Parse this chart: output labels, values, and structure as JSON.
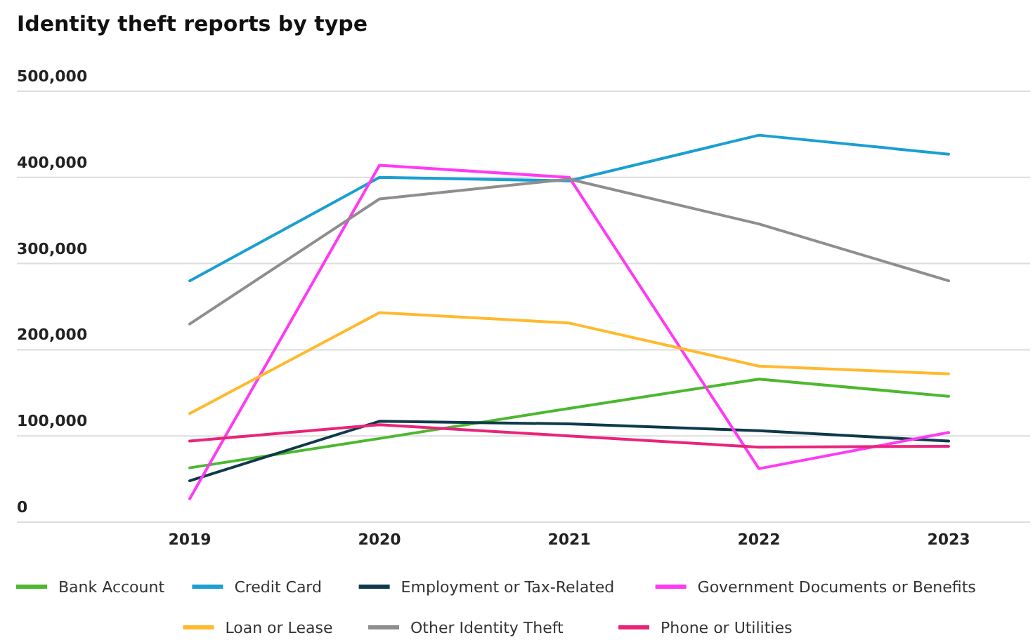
{
  "chart_data": {
    "type": "line",
    "title": "Identity theft reports by type",
    "categories": [
      "2019",
      "2020",
      "2021",
      "2022",
      "2023"
    ],
    "series": [
      {
        "name": "Bank Account",
        "color": "#4cb82f",
        "values": [
          63000,
          97000,
          132000,
          166000,
          146000
        ]
      },
      {
        "name": "Credit Card",
        "color": "#1a9fd1",
        "values": [
          280000,
          400000,
          396000,
          449000,
          427000
        ]
      },
      {
        "name": "Employment or Tax-Related",
        "color": "#0e3a4a",
        "values": [
          48000,
          117000,
          114000,
          106000,
          94000
        ]
      },
      {
        "name": "Government Documents or Benefits",
        "color": "#ff3af5",
        "values": [
          27000,
          414000,
          400000,
          62000,
          104000
        ]
      },
      {
        "name": "Loan or Lease",
        "color": "#ffb92e",
        "values": [
          126000,
          243000,
          231000,
          181000,
          172000
        ]
      },
      {
        "name": "Other Identity Theft",
        "color": "#8e8e8e",
        "values": [
          230000,
          375000,
          398000,
          346000,
          280000
        ]
      },
      {
        "name": "Phone or Utilities",
        "color": "#e8247a",
        "values": [
          94000,
          113000,
          100000,
          87000,
          88000
        ]
      }
    ],
    "ylim": [
      0,
      500000
    ],
    "yticks": [
      {
        "value": 0,
        "label": "0"
      },
      {
        "value": 100000,
        "label": "100,000"
      },
      {
        "value": 200000,
        "label": "200,000"
      },
      {
        "value": 300000,
        "label": "300,000"
      },
      {
        "value": 400000,
        "label": "400,000"
      },
      {
        "value": 500000,
        "label": "500,000"
      }
    ],
    "grid": "y",
    "legend": "bottom",
    "marker": "none",
    "line_style": "solid"
  }
}
